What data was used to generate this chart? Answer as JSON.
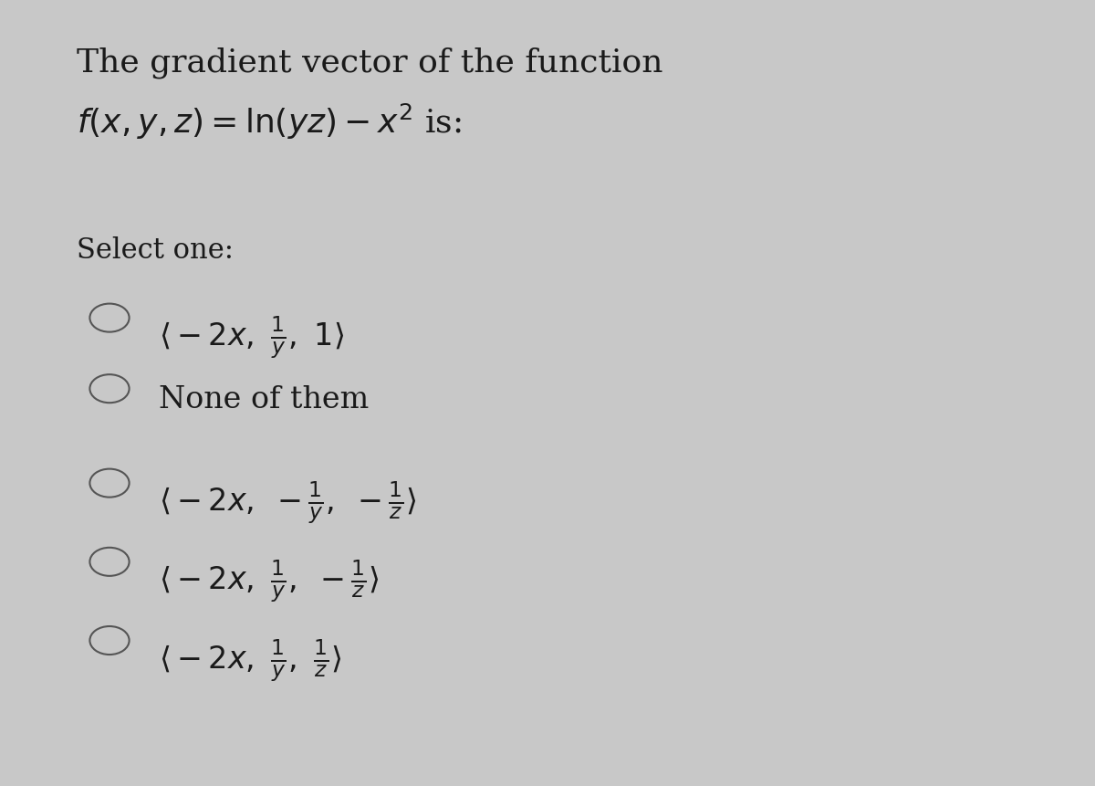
{
  "background_color": "#c8c8c8",
  "title_line1": "The gradient vector of the function",
  "title_line2": "$f(x, y, z) = \\ln(yz) - x^2$ is:",
  "select_label": "Select one:",
  "options": [
    "$\\langle -2x,\\ \\frac{1}{y},\\ 1 \\rangle$",
    "None of them",
    "$\\langle -2x,\\ -\\frac{1}{y},\\ -\\frac{1}{z} \\rangle$",
    "$\\langle -2x,\\ \\frac{1}{y},\\ -\\frac{1}{z} \\rangle$",
    "$\\langle -2x,\\ \\frac{1}{y},\\ \\frac{1}{z} \\rangle$"
  ],
  "text_color": "#1a1a1a",
  "circle_color": "#555555",
  "title_fontsize": 26,
  "option_fontsize": 24,
  "select_fontsize": 22
}
